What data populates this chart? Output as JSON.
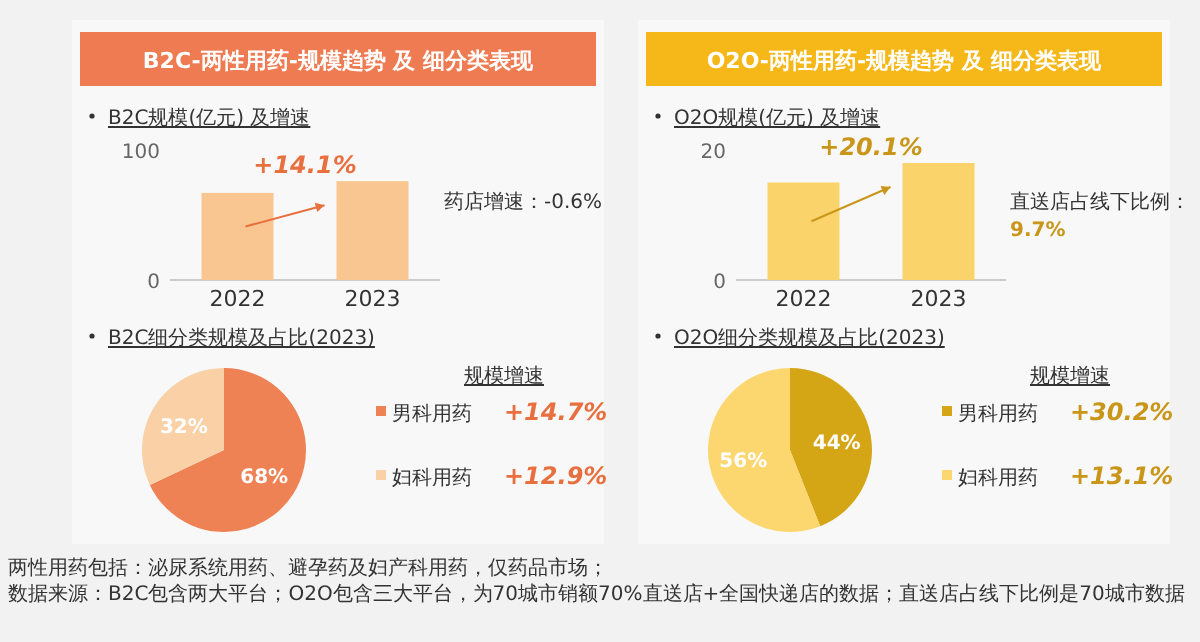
{
  "chart_data": [
    {
      "type": "bar",
      "title": "B2C-两性用药-规模趋势 及 细分类表现",
      "subtitle": "B2C规模(亿元) 及增速",
      "categories": [
        "2022",
        "2023"
      ],
      "ylim": [
        0,
        100
      ],
      "yticks": [
        0,
        100
      ],
      "series": [
        {
          "color": "#f9c590",
          "values": [
            67,
            76
          ]
        }
      ],
      "annotations": [
        "+14.1%",
        "药店增速：-0.6%"
      ]
    },
    {
      "type": "pie",
      "subtitle": "B2C细分类规模及占比(2023)",
      "categories": [
        "男科用药",
        "妇科用药"
      ],
      "values": [
        68,
        32
      ],
      "colors": [
        "#ef8254",
        "#fad0a6"
      ],
      "value_labels": [
        "68%",
        "32%"
      ],
      "legend": "right",
      "legend_title": "规模增速",
      "annotations": [
        "+14.7%",
        "+12.9%"
      ]
    },
    {
      "type": "bar",
      "title": "O2O-两性用药-规模趋势 及 细分类表现",
      "subtitle": "O2O规模(亿元) 及增速",
      "categories": [
        "2022",
        "2023"
      ],
      "ylim": [
        0,
        20
      ],
      "yticks": [
        0,
        20
      ],
      "series": [
        {
          "color": "#fbd36b",
          "values": [
            15,
            18
          ]
        }
      ],
      "annotations": [
        "+20.1%",
        "直送店占线下比例：",
        "9.7%"
      ]
    },
    {
      "type": "pie",
      "subtitle": "O2O细分类规模及占比(2023)",
      "categories": [
        "男科用药",
        "妇科用药"
      ],
      "values": [
        44,
        56
      ],
      "colors": [
        "#d4a514",
        "#fcd66e"
      ],
      "value_labels": [
        "44%",
        "56%"
      ],
      "legend": "right",
      "legend_title": "规模增速",
      "annotations": [
        "+30.2%",
        "+13.1%"
      ]
    },
    {
      "type": "other",
      "annotations": [
        "两性用药包括：泌尿系统用药、避孕药及妇产科用药，仅药品市场；",
        "数据来源：B2C包含两大平台；O2O包含三大平台，为70城市销额70%直送店+全国快递店的数据；直送店占线下比例是70城市数据"
      ]
    }
  ]
}
